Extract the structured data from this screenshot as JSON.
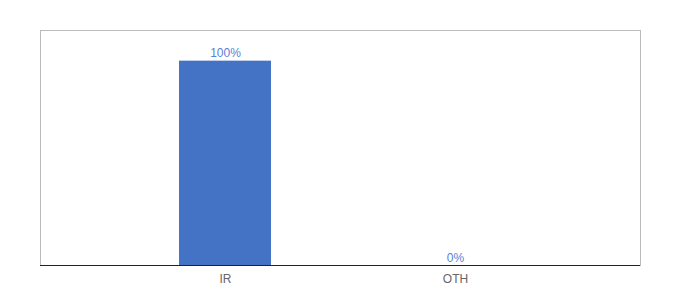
{
  "chart_data": {
    "type": "bar",
    "categories": [
      "IR",
      "OTH"
    ],
    "values": [
      100,
      0
    ],
    "value_labels": [
      "100%",
      "0%"
    ],
    "color": "#4472c4",
    "ylim": [
      0,
      115
    ],
    "data_labels": true,
    "tick_labels": "x",
    "grid": false
  }
}
